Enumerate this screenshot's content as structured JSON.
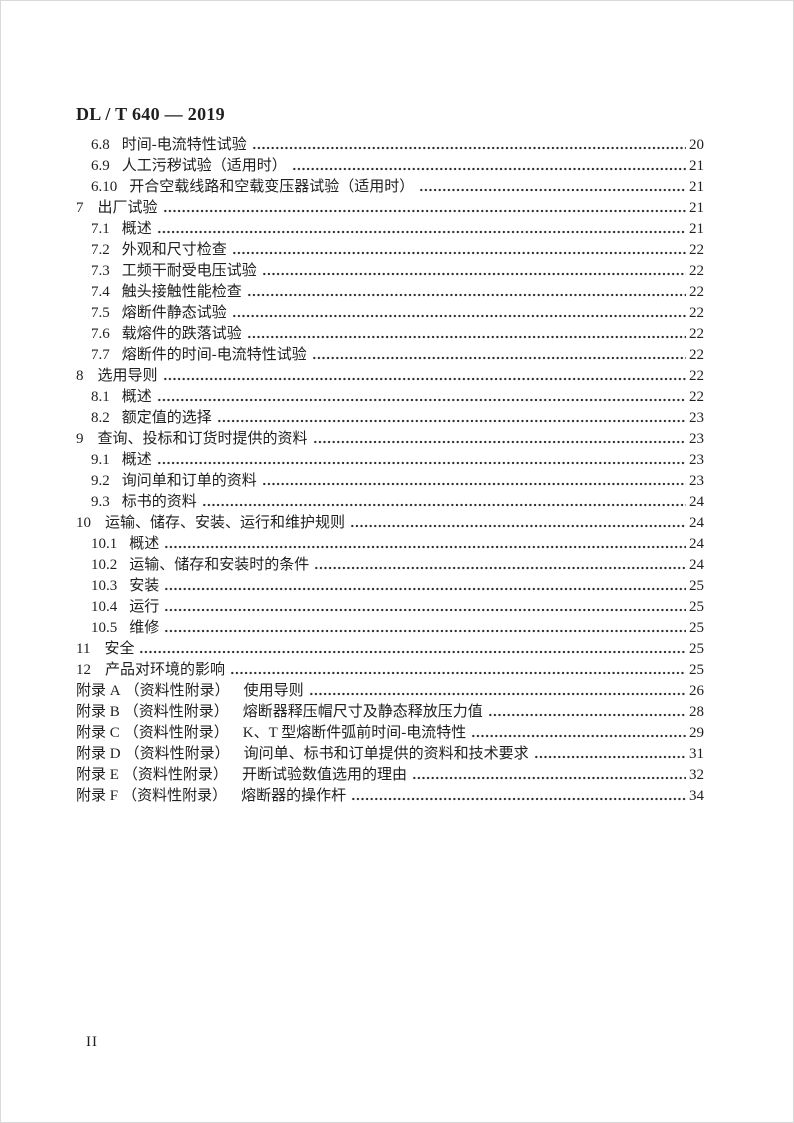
{
  "document": {
    "header": "DL / T 640 — 2019",
    "page_number": "II"
  },
  "toc": {
    "entries": [
      {
        "kind": "l2",
        "num": "6.8",
        "title": "时间-电流特性试验",
        "page": "20"
      },
      {
        "kind": "l2",
        "num": "6.9",
        "title": "人工污秽试验（适用时）",
        "page": "21"
      },
      {
        "kind": "l2",
        "num": "6.10",
        "title": "开合空载线路和空载变压器试验（适用时）",
        "page": "21"
      },
      {
        "kind": "l1",
        "num": "7",
        "title": "出厂试验",
        "page": "21"
      },
      {
        "kind": "l2",
        "num": "7.1",
        "title": "概述",
        "page": "21"
      },
      {
        "kind": "l2",
        "num": "7.2",
        "title": "外观和尺寸检查",
        "page": "22"
      },
      {
        "kind": "l2",
        "num": "7.3",
        "title": "工频干耐受电压试验",
        "page": "22"
      },
      {
        "kind": "l2",
        "num": "7.4",
        "title": "触头接触性能检查",
        "page": "22"
      },
      {
        "kind": "l2",
        "num": "7.5",
        "title": "熔断件静态试验",
        "page": "22"
      },
      {
        "kind": "l2",
        "num": "7.6",
        "title": "载熔件的跌落试验",
        "page": "22"
      },
      {
        "kind": "l2",
        "num": "7.7",
        "title": "熔断件的时间-电流特性试验",
        "page": "22"
      },
      {
        "kind": "l1",
        "num": "8",
        "title": "选用导则",
        "page": "22"
      },
      {
        "kind": "l2",
        "num": "8.1",
        "title": "概述",
        "page": "22"
      },
      {
        "kind": "l2",
        "num": "8.2",
        "title": "额定值的选择",
        "page": "23"
      },
      {
        "kind": "l1",
        "num": "9",
        "title": "查询、投标和订货时提供的资料",
        "page": "23"
      },
      {
        "kind": "l2",
        "num": "9.1",
        "title": "概述",
        "page": "23"
      },
      {
        "kind": "l2",
        "num": "9.2",
        "title": "询问单和订单的资料",
        "page": "23"
      },
      {
        "kind": "l2",
        "num": "9.3",
        "title": "标书的资料",
        "page": "24"
      },
      {
        "kind": "l1",
        "num": "10",
        "title": "运输、储存、安装、运行和维护规则",
        "page": "24"
      },
      {
        "kind": "l2",
        "num": "10.1",
        "title": "概述",
        "page": "24"
      },
      {
        "kind": "l2",
        "num": "10.2",
        "title": "运输、储存和安装时的条件",
        "page": "24"
      },
      {
        "kind": "l2",
        "num": "10.3",
        "title": "安装",
        "page": "25"
      },
      {
        "kind": "l2",
        "num": "10.4",
        "title": "运行",
        "page": "25"
      },
      {
        "kind": "l2",
        "num": "10.5",
        "title": "维修",
        "page": "25"
      },
      {
        "kind": "l1",
        "num": "11",
        "title": "安全",
        "page": "25"
      },
      {
        "kind": "l1",
        "num": "12",
        "title": "产品对环境的影响",
        "page": "25"
      },
      {
        "kind": "appendix",
        "num": "附录 A",
        "paren": "（资料性附录）",
        "title": "使用导则",
        "page": "26"
      },
      {
        "kind": "appendix",
        "num": "附录 B",
        "paren": "（资料性附录）",
        "title": "熔断器释压帽尺寸及静态释放压力值",
        "page": "28"
      },
      {
        "kind": "appendix",
        "num": "附录 C",
        "paren": "（资料性附录）",
        "title": "K、T 型熔断件弧前时间-电流特性",
        "page": "29"
      },
      {
        "kind": "appendix",
        "num": "附录 D",
        "paren": "（资料性附录）",
        "title": "询问单、标书和订单提供的资料和技术要求",
        "page": "31"
      },
      {
        "kind": "appendix",
        "num": "附录 E",
        "paren": "（资料性附录）",
        "title": "开断试验数值选用的理由",
        "page": "32"
      },
      {
        "kind": "appendix",
        "num": "附录 F",
        "paren": "（资料性附录）",
        "title": "熔断器的操作杆",
        "page": "34"
      }
    ]
  }
}
